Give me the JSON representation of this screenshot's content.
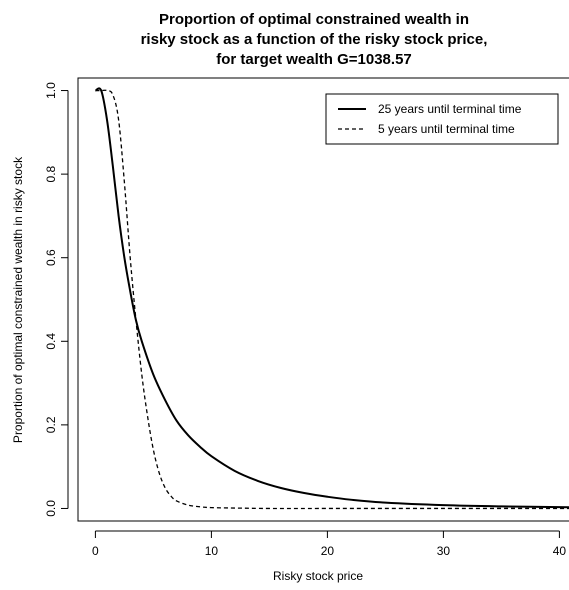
{
  "chart_data": {
    "type": "line",
    "title": [
      "Proportion of optimal constrained wealth in",
      "risky stock as a function of the risky stock price,",
      "for target wealth G=1038.57"
    ],
    "xlabel": "Risky stock price",
    "ylabel": "Proportion of optimal constrained wealth in risky stock",
    "xlim": [
      -1.5,
      41
    ],
    "ylim": [
      -0.03,
      1.03
    ],
    "xticks": [
      0,
      10,
      20,
      30,
      40
    ],
    "xtick_labels": [
      "0",
      "10",
      "20",
      "30",
      "40"
    ],
    "yticks": [
      0.0,
      0.2,
      0.4,
      0.6,
      0.8,
      1.0
    ],
    "ytick_labels": [
      "0.0",
      "0.2",
      "0.4",
      "0.6",
      "0.8",
      "1.0"
    ],
    "grid": false,
    "legend_position": "top-right",
    "series": [
      {
        "name": "25 years until terminal time",
        "style": "solid",
        "x": [
          0.0,
          0.5,
          1.0,
          1.5,
          2.0,
          2.5,
          3.0,
          3.5,
          4.0,
          5.0,
          6.0,
          7.0,
          8.0,
          9.0,
          10.0,
          12.0,
          14.0,
          16.0,
          18.0,
          20.0,
          22.0,
          25.0,
          30.0,
          35.0,
          41.0
        ],
        "y": [
          1.0,
          1.0,
          0.93,
          0.82,
          0.7,
          0.6,
          0.52,
          0.45,
          0.4,
          0.32,
          0.26,
          0.21,
          0.175,
          0.148,
          0.125,
          0.09,
          0.066,
          0.049,
          0.037,
          0.028,
          0.021,
          0.014,
          0.008,
          0.005,
          0.003
        ]
      },
      {
        "name": "5 years until terminal time",
        "style": "dashed",
        "x": [
          0.0,
          0.5,
          1.0,
          1.5,
          2.0,
          2.5,
          3.0,
          3.5,
          4.0,
          4.5,
          5.0,
          5.5,
          6.0,
          6.5,
          7.0,
          8.0,
          9.0,
          10.0,
          12.0,
          15.0,
          20.0,
          30.0,
          41.0
        ],
        "y": [
          1.0,
          1.0,
          1.0,
          0.99,
          0.93,
          0.78,
          0.6,
          0.45,
          0.32,
          0.22,
          0.14,
          0.085,
          0.05,
          0.03,
          0.018,
          0.008,
          0.004,
          0.002,
          0.001,
          0.0,
          0.0,
          0.0,
          0.0
        ]
      }
    ]
  }
}
